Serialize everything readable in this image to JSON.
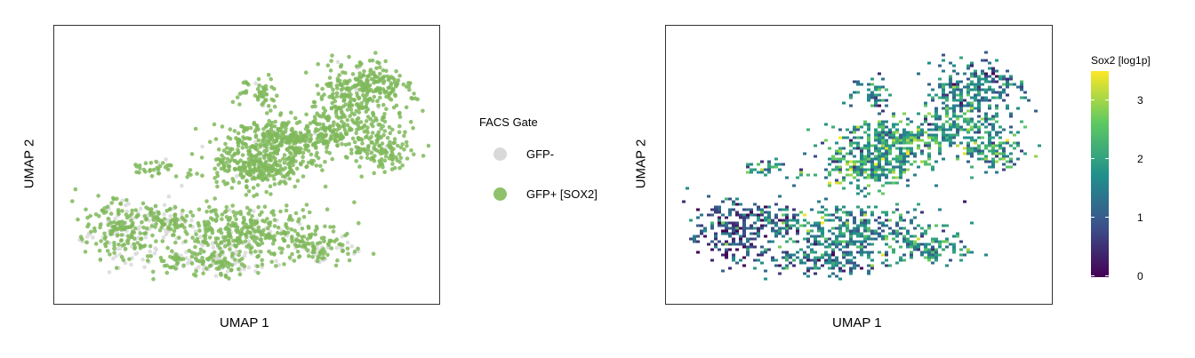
{
  "chart_data": [
    {
      "type": "scatter",
      "xlabel": "UMAP 1",
      "ylabel": "UMAP 2",
      "legend": {
        "title": "FACS Gate",
        "position": "right",
        "entries": [
          {
            "label": "GFP-",
            "color": "#d9d9d9"
          },
          {
            "label": "GFP+ [SOX2]",
            "color": "#8fc16a"
          }
        ]
      },
      "point_color": "#7fb85a",
      "grid": false,
      "axis_ticks": false
    },
    {
      "type": "heatmap",
      "xlabel": "UMAP 1",
      "ylabel": "UMAP 2",
      "colorbar": {
        "title": "Sox2 [log1p]",
        "range": [
          0,
          3.4
        ],
        "ticks": [
          "0",
          "1",
          "2",
          "3"
        ],
        "colormap": "viridis",
        "colors": [
          "#440154",
          "#3b528b",
          "#21918c",
          "#5ec962",
          "#fde725"
        ]
      },
      "grid": false,
      "axis_ticks": false
    }
  ]
}
